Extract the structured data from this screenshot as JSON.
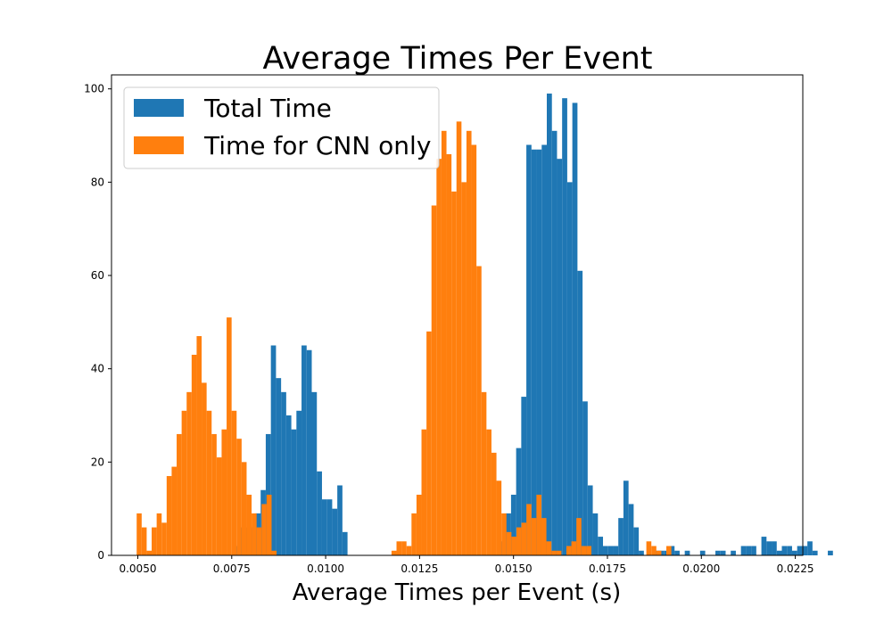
{
  "chart_data": {
    "type": "bar",
    "title": "Average Times Per Event",
    "xlabel": "Average Times per Event (s)",
    "ylabel": "",
    "xlim": [
      0.0043,
      0.0227
    ],
    "ylim": [
      0,
      103
    ],
    "grid": false,
    "legend_position": "top-left",
    "x_ticks": [
      0.005,
      0.0075,
      0.01,
      0.0125,
      0.015,
      0.0175,
      0.02,
      0.0225
    ],
    "x_tick_labels": [
      "0.0050",
      "0.0075",
      "0.0100",
      "0.0125",
      "0.0150",
      "0.0175",
      "0.0200",
      "0.0225"
    ],
    "y_ticks": [
      0,
      20,
      40,
      60,
      80,
      100
    ],
    "y_tick_labels": [
      "0",
      "20",
      "40",
      "60",
      "80",
      "100"
    ],
    "series": [
      {
        "name": "Total Time",
        "color": "#1f77b4",
        "bin_start": 0.00759,
        "bin_width": 0.000136,
        "values": [
          2,
          6,
          6,
          6,
          9,
          14,
          26,
          45,
          38,
          35,
          30,
          27,
          31,
          45,
          44,
          35,
          18,
          12,
          12,
          10,
          15,
          5,
          0,
          0,
          0,
          0,
          0,
          0,
          0,
          0,
          0,
          0,
          0,
          0,
          0,
          0,
          0,
          0,
          0,
          0,
          0,
          0,
          0,
          0,
          0,
          0,
          0,
          0,
          0,
          0,
          0,
          0,
          3,
          9,
          13,
          23,
          34,
          88,
          87,
          87,
          88,
          99,
          91,
          85,
          98,
          80,
          97,
          61,
          33,
          15,
          9,
          4,
          2,
          2,
          2,
          8,
          16,
          11,
          6,
          1,
          0,
          0,
          1,
          1,
          1,
          2,
          1,
          0,
          1,
          0,
          0,
          1,
          0,
          0,
          1,
          1,
          0,
          1,
          0,
          2,
          2,
          2,
          0,
          4,
          3,
          3,
          1,
          2,
          2,
          1,
          2,
          2,
          3,
          1,
          0,
          0,
          1
        ]
      },
      {
        "name": "Time for CNN only",
        "color": "#ff7f0e",
        "bin_start": 0.00497,
        "bin_width": 0.000133,
        "values": [
          9,
          6,
          1,
          6,
          9,
          7,
          17,
          19,
          26,
          31,
          35,
          43,
          47,
          37,
          31,
          26,
          21,
          27,
          51,
          31,
          25,
          20,
          13,
          9,
          6,
          11,
          13,
          1,
          0,
          0,
          0,
          0,
          0,
          0,
          0,
          0,
          0,
          0,
          0,
          0,
          0,
          0,
          0,
          0,
          0,
          0,
          0,
          0,
          0,
          0,
          0,
          1,
          3,
          3,
          2,
          9,
          13,
          27,
          48,
          75,
          85,
          91,
          86,
          78,
          93,
          80,
          91,
          88,
          62,
          35,
          27,
          22,
          16,
          9,
          5,
          4,
          6,
          7,
          11,
          8,
          13,
          8,
          3,
          1,
          1,
          0,
          2,
          3,
          8,
          2,
          2,
          0,
          0,
          0,
          0,
          0,
          0,
          0,
          0,
          0,
          0,
          0,
          3,
          2,
          1,
          0,
          2
        ]
      }
    ]
  }
}
